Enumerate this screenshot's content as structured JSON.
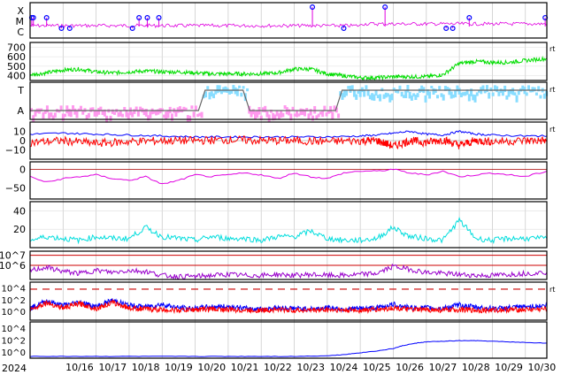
{
  "chart_data": {
    "type": "line",
    "year_label": "2024",
    "x_tick_labels": [
      "10/16",
      "10/17",
      "10/18",
      "10/19",
      "10/20",
      "10/21",
      "10/22",
      "10/23",
      "10/24",
      "10/25",
      "10/26",
      "10/27",
      "10/28",
      "10/29",
      "10/30"
    ],
    "x_range_days": [
      15.0,
      30.65
    ],
    "colors": {
      "xray": "#e000e0",
      "flare_marker": "#0000ff",
      "speed": "#00dd00",
      "pink_a": "#ff99ee",
      "cyan_t": "#88ddff",
      "sector": "#666666",
      "bz": "#ff0000",
      "bt": "#0000ff",
      "dst": "#e000e0",
      "kp": "#00dddd",
      "electron": "#9900cc",
      "threshold": "#cc0000",
      "proton_a": "#0000ff",
      "proton_b": "#ff0000",
      "neutron": "#0000ff"
    },
    "panels": [
      {
        "id": "xray",
        "tick_labels": [
          "X",
          "M",
          "C"
        ],
        "flare_days": [
          15.05,
          15.1,
          15.5,
          15.95,
          16.2,
          18.1,
          18.3,
          18.55,
          18.9,
          23.55,
          24.5,
          25.75,
          27.6,
          27.8,
          28.3,
          30.6
        ],
        "flare_class": [
          "M",
          "M",
          "M",
          "C",
          "C",
          "C",
          "M",
          "M",
          "M",
          "X",
          "C",
          "X",
          "C",
          "C",
          "M",
          "M"
        ]
      },
      {
        "id": "solar-wind-speed",
        "tick_labels": [
          "700",
          "600",
          "500",
          "400"
        ],
        "ylim": [
          350,
          750
        ],
        "right_label": "rt",
        "series": [
          {
            "x": [
              15.0,
              15.5,
              16.0,
              16.5,
              17.0,
              17.5,
              18.0,
              18.5,
              19.0,
              19.5,
              20.0,
              20.5,
              21.0,
              21.5,
              22.0,
              22.5,
              23.0,
              23.5,
              24.0,
              24.5,
              25.0,
              25.5,
              26.0,
              26.5,
              27.0,
              27.5,
              28.0,
              28.5,
              29.0,
              29.5,
              30.0,
              30.65
            ],
            "y": [
              410,
              430,
              460,
              470,
              440,
              430,
              440,
              450,
              440,
              440,
              430,
              420,
              420,
              420,
              420,
              430,
              470,
              470,
              420,
              400,
              380,
              380,
              390,
              390,
              390,
              410,
              530,
              550,
              540,
              540,
              560,
              580
            ]
          }
        ]
      },
      {
        "id": "imf-sector",
        "tick_labels": [
          "T",
          "A"
        ],
        "right_label": "rt",
        "sector_line": {
          "x": [
            15.0,
            20.1,
            20.3,
            21.45,
            21.65,
            24.25,
            24.45,
            30.65
          ],
          "level": [
            "A",
            "A",
            "T",
            "T",
            "A",
            "A",
            "T",
            "T"
          ]
        }
      },
      {
        "id": "imf-bz-bt",
        "tick_labels": [
          "10",
          "0",
          "−10"
        ],
        "ylim": [
          -20,
          20
        ],
        "right_label": "rt",
        "series": [
          {
            "x": [
              15.0,
              16.0,
              17.0,
              18.0,
              19.0,
              20.0,
              21.0,
              22.0,
              23.0,
              24.0,
              25.0,
              25.5,
              26.0,
              26.5,
              27.0,
              27.5,
              28.0,
              28.5,
              29.0,
              30.0,
              30.65
            ],
            "y": [
              7,
              8,
              7,
              6,
              5,
              4,
              4,
              4,
              4,
              4,
              5,
              6,
              8,
              10,
              7,
              6,
              10,
              7,
              6,
              5,
              5
            ]
          },
          {
            "x": [
              15.0,
              16.0,
              17.0,
              18.0,
              19.0,
              20.0,
              21.0,
              22.0,
              23.0,
              24.0,
              25.0,
              25.5,
              26.0,
              26.5,
              27.0,
              27.5,
              28.0,
              28.5,
              29.0,
              30.0,
              30.65
            ],
            "y": [
              -2,
              0,
              -3,
              -1,
              0,
              0,
              1,
              0,
              0,
              -1,
              0,
              0,
              -6,
              0,
              -2,
              1,
              -5,
              0,
              -1,
              0,
              0
            ]
          }
        ]
      },
      {
        "id": "dst",
        "tick_labels": [
          "0",
          "−50"
        ],
        "ylim": [
          -80,
          20
        ],
        "series": [
          {
            "x": [
              15.0,
              15.5,
              16.0,
              16.5,
              17.0,
              17.5,
              18.0,
              18.5,
              19.0,
              19.5,
              20.0,
              20.5,
              21.0,
              21.5,
              22.0,
              22.5,
              23.0,
              23.5,
              24.0,
              24.5,
              25.0,
              25.5,
              26.0,
              26.5,
              27.0,
              27.5,
              28.0,
              28.5,
              29.0,
              29.5,
              30.0,
              30.65
            ],
            "y": [
              -20,
              -35,
              -25,
              -20,
              -15,
              -25,
              -30,
              -20,
              -40,
              -30,
              -15,
              -20,
              -15,
              -10,
              -15,
              -25,
              -10,
              -20,
              -25,
              -10,
              -5,
              -5,
              0,
              -10,
              -15,
              -5,
              -20,
              -15,
              -10,
              -15,
              -20,
              -5
            ]
          }
        ]
      },
      {
        "id": "kp",
        "tick_labels": [
          "40",
          "20"
        ],
        "ylim": [
          0,
          50
        ],
        "series": [
          {
            "x": [
              15.0,
              15.5,
              16.0,
              16.5,
              17.0,
              17.5,
              18.0,
              18.5,
              19.0,
              19.5,
              20.0,
              20.5,
              21.0,
              21.5,
              22.0,
              22.5,
              23.0,
              23.5,
              24.0,
              24.5,
              25.0,
              25.5,
              26.0,
              26.5,
              27.0,
              27.5,
              28.0,
              28.5,
              29.0,
              29.5,
              30.0,
              30.65
            ],
            "y": [
              8,
              12,
              10,
              8,
              12,
              10,
              10,
              22,
              12,
              10,
              8,
              12,
              10,
              10,
              8,
              12,
              12,
              18,
              10,
              8,
              8,
              10,
              22,
              12,
              10,
              8,
              30,
              10,
              8,
              10,
              10,
              10
            ]
          }
        ]
      },
      {
        "id": "electron-flux",
        "tick_labels": [
          "10^7",
          "10^6"
        ],
        "ylim_log10": [
          4.6,
          7.4
        ],
        "thresholds_log10": [
          7.0,
          6.0
        ],
        "series": [
          {
            "x": [
              15.0,
              15.5,
              16.0,
              16.5,
              17.0,
              17.5,
              18.0,
              18.5,
              19.0,
              19.5,
              20.0,
              20.5,
              21.0,
              21.5,
              22.0,
              22.5,
              23.0,
              23.5,
              24.0,
              24.5,
              25.0,
              25.5,
              26.0,
              26.5,
              27.0,
              27.5,
              28.0,
              28.5,
              29.0,
              29.5,
              30.0,
              30.65
            ],
            "y": [
              5.5,
              5.8,
              5.4,
              5.2,
              5.5,
              5.3,
              5.5,
              5.4,
              5.0,
              4.9,
              4.9,
              5.0,
              5.1,
              5.0,
              5.0,
              5.1,
              5.0,
              5.1,
              5.0,
              5.0,
              5.1,
              5.2,
              5.9,
              5.6,
              5.3,
              5.2,
              5.1,
              5.0,
              5.0,
              5.1,
              5.2,
              5.3
            ]
          }
        ]
      },
      {
        "id": "proton-flux",
        "tick_labels": [
          "10^4",
          "10^2",
          "10^0"
        ],
        "ylim_log10": [
          -1.5,
          5.0
        ],
        "threshold_log10": 3.8,
        "right_label": "rt",
        "series": [
          {
            "x": [
              15.0,
              15.5,
              16.0,
              16.5,
              17.0,
              17.5,
              18.0,
              18.5,
              19.0,
              19.5,
              20.0,
              20.5,
              21.0,
              21.5,
              22.0,
              22.5,
              23.0,
              23.5,
              24.0,
              24.5,
              25.0,
              25.5,
              26.0,
              26.5,
              27.0,
              27.5,
              28.0,
              28.5,
              29.0,
              29.5,
              30.0,
              30.65
            ],
            "y": [
              0.5,
              1.8,
              1.0,
              1.6,
              0.8,
              1.9,
              1.0,
              0.8,
              1.2,
              0.6,
              0.5,
              0.8,
              0.8,
              0.5,
              0.4,
              0.6,
              0.5,
              0.4,
              0.6,
              0.4,
              0.5,
              0.6,
              1.2,
              0.6,
              0.6,
              0.5,
              1.1,
              0.7,
              0.5,
              0.6,
              0.8,
              1.0
            ]
          },
          {
            "x": [
              15.0,
              15.5,
              16.0,
              16.5,
              17.0,
              17.5,
              18.0,
              18.5,
              19.0,
              19.5,
              20.0,
              20.5,
              21.0,
              21.5,
              22.0,
              22.5,
              23.0,
              23.5,
              24.0,
              24.5,
              25.0,
              25.5,
              26.0,
              26.5,
              27.0,
              27.5,
              28.0,
              28.5,
              29.0,
              29.5,
              30.0,
              30.65
            ],
            "y": [
              0.3,
              1.5,
              0.6,
              1.3,
              0.5,
              1.5,
              0.6,
              0.4,
              0.3,
              0.2,
              0.3,
              0.4,
              0.3,
              0.2,
              0.2,
              0.3,
              0.2,
              0.2,
              0.3,
              0.2,
              0.2,
              0.3,
              0.6,
              0.3,
              0.3,
              0.2,
              0.3,
              0.2,
              0.2,
              0.3,
              0.3,
              0.4
            ]
          }
        ]
      },
      {
        "id": "neutron",
        "tick_labels": [
          "10^4",
          "10^2",
          "10^0"
        ],
        "ylim_log10": [
          -1.0,
          5.0
        ],
        "series": [
          {
            "x": [
              15.0,
              16.0,
              17.0,
              18.0,
              19.0,
              20.0,
              21.0,
              22.0,
              23.0,
              24.0,
              24.5,
              25.0,
              25.5,
              26.0,
              26.3,
              26.7,
              27.0,
              27.5,
              28.0,
              28.5,
              29.0,
              29.5,
              30.0,
              30.65
            ],
            "y": [
              -0.7,
              -0.7,
              -0.7,
              -0.7,
              -0.7,
              -0.7,
              -0.7,
              -0.7,
              -0.7,
              -0.6,
              -0.4,
              -0.1,
              0.2,
              0.6,
              1.1,
              1.5,
              1.7,
              1.8,
              1.9,
              1.9,
              1.8,
              1.7,
              1.6,
              1.5
            ]
          }
        ]
      }
    ]
  }
}
